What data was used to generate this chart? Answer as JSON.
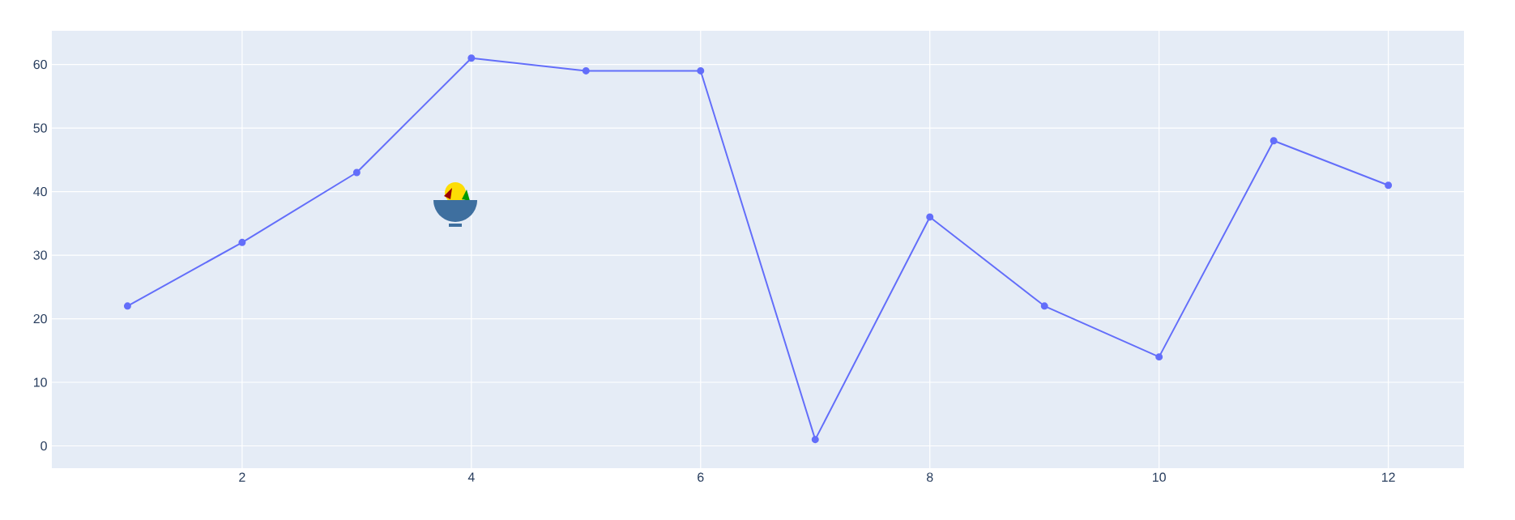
{
  "chart_data": {
    "type": "line",
    "x": [
      1,
      2,
      3,
      4,
      5,
      6,
      7,
      8,
      9,
      10,
      11,
      12
    ],
    "series": [
      {
        "color": "#636efa",
        "values": [
          22,
          32,
          43,
          61,
          59,
          59,
          1,
          36,
          22,
          14,
          48,
          41
        ]
      }
    ],
    "xlim": [
      0.34,
      12.66
    ],
    "ylim": [
      -3.5,
      65.3
    ],
    "xticks": [
      2,
      4,
      6,
      8,
      10,
      12
    ],
    "yticks": [
      0,
      10,
      20,
      30,
      40,
      50,
      60
    ],
    "grid": true,
    "marker": "circle",
    "line_style": "solid"
  }
}
